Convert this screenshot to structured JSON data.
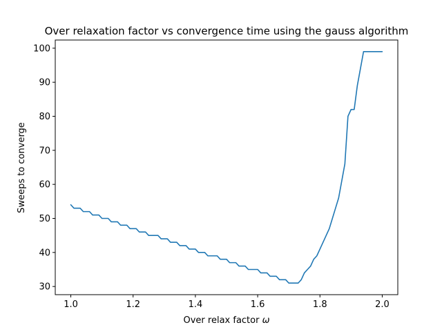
{
  "chart_data": {
    "type": "line",
    "title": "Over relaxation factor vs convergence time using the gauss algorithm",
    "xlabel_text": "Over relax factor ",
    "xlabel_symbol": "ω",
    "ylabel": "Sweeps to converge",
    "xlim": [
      0.95,
      2.05
    ],
    "ylim": [
      27.6,
      102.4
    ],
    "xticks": [
      1.0,
      1.2,
      1.4,
      1.6,
      1.8,
      2.0
    ],
    "xtick_labels": [
      "1.0",
      "1.2",
      "1.4",
      "1.6",
      "1.8",
      "2.0"
    ],
    "yticks": [
      30,
      40,
      50,
      60,
      70,
      80,
      90,
      100
    ],
    "ytick_labels": [
      "30",
      "40",
      "50",
      "60",
      "70",
      "80",
      "90",
      "100"
    ],
    "grid": false,
    "legend": "none",
    "series": [
      {
        "color": "#1f77b4",
        "x": [
          1.0,
          1.01,
          1.02,
          1.03,
          1.04,
          1.05,
          1.06,
          1.07,
          1.08,
          1.09,
          1.1,
          1.11,
          1.12,
          1.13,
          1.14,
          1.15,
          1.16,
          1.17,
          1.18,
          1.19,
          1.2,
          1.21,
          1.22,
          1.23,
          1.24,
          1.25,
          1.26,
          1.27,
          1.28,
          1.29,
          1.3,
          1.31,
          1.32,
          1.33,
          1.34,
          1.35,
          1.36,
          1.37,
          1.38,
          1.39,
          1.4,
          1.41,
          1.42,
          1.43,
          1.44,
          1.45,
          1.46,
          1.47,
          1.48,
          1.49,
          1.5,
          1.51,
          1.52,
          1.53,
          1.54,
          1.55,
          1.56,
          1.57,
          1.58,
          1.59,
          1.6,
          1.61,
          1.62,
          1.63,
          1.64,
          1.65,
          1.66,
          1.67,
          1.68,
          1.69,
          1.7,
          1.71,
          1.72,
          1.73,
          1.74,
          1.75,
          1.76,
          1.77,
          1.78,
          1.79,
          1.8,
          1.81,
          1.82,
          1.83,
          1.84,
          1.85,
          1.86,
          1.87,
          1.88,
          1.89,
          1.9,
          1.91,
          1.92,
          1.93,
          1.94,
          1.95,
          1.96,
          1.97,
          1.98,
          1.99,
          2.0
        ],
        "y": [
          54,
          53,
          53,
          53,
          52,
          52,
          52,
          51,
          51,
          51,
          50,
          50,
          50,
          49,
          49,
          49,
          48,
          48,
          48,
          47,
          47,
          47,
          46,
          46,
          46,
          45,
          45,
          45,
          45,
          44,
          44,
          44,
          43,
          43,
          43,
          42,
          42,
          42,
          41,
          41,
          41,
          40,
          40,
          40,
          39,
          39,
          39,
          39,
          38,
          38,
          38,
          37,
          37,
          37,
          36,
          36,
          36,
          35,
          35,
          35,
          35,
          34,
          34,
          34,
          33,
          33,
          33,
          32,
          32,
          32,
          31,
          31,
          31,
          31,
          32,
          34,
          35,
          36,
          38,
          39,
          41,
          43,
          45,
          47,
          50,
          53,
          56,
          61,
          66,
          80,
          82,
          82,
          89,
          94,
          99,
          99,
          99,
          99,
          99,
          99,
          99
        ]
      }
    ]
  }
}
